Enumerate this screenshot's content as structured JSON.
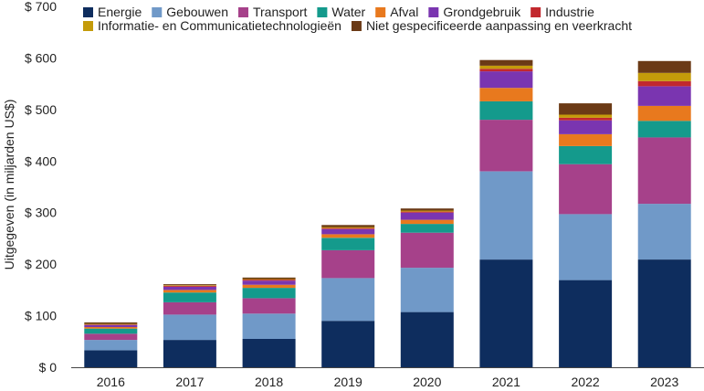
{
  "chart_data": {
    "type": "bar",
    "stacked": true,
    "title": "",
    "xlabel": "",
    "ylabel": "Uitgegeven (in miljarden US$)",
    "ylim": [
      0,
      700
    ],
    "yticks": [
      0,
      100,
      200,
      300,
      400,
      500,
      600,
      700
    ],
    "ytick_labels": [
      "$ 0",
      "$ 100",
      "$ 200",
      "$ 300",
      "$ 400",
      "$ 500",
      "$ 600",
      "$ 700"
    ],
    "grid": false,
    "legend_position": "top",
    "categories": [
      "2016",
      "2017",
      "2018",
      "2019",
      "2020",
      "2021",
      "2022",
      "2023"
    ],
    "series": [
      {
        "name": "Energie",
        "color": "#0e2d5e",
        "values": [
          33,
          53,
          55,
          90,
          107,
          209,
          169,
          209
        ]
      },
      {
        "name": "Gebouwen",
        "color": "#7099c8",
        "values": [
          20,
          49,
          49,
          83,
          86,
          171,
          128,
          108
        ]
      },
      {
        "name": "Transport",
        "color": "#a6418a",
        "values": [
          12,
          24,
          30,
          54,
          68,
          100,
          97,
          129
        ]
      },
      {
        "name": "Water",
        "color": "#149a8c",
        "values": [
          10,
          19,
          20,
          24,
          17,
          36,
          35,
          32
        ]
      },
      {
        "name": "Afval",
        "color": "#e8791e",
        "values": [
          3,
          5,
          6,
          7,
          8,
          26,
          23,
          29
        ]
      },
      {
        "name": "Grondgebruik",
        "color": "#7a35b0",
        "values": [
          4,
          6,
          8,
          10,
          14,
          32,
          27,
          38
        ]
      },
      {
        "name": "Industrie",
        "color": "#c2282e",
        "values": [
          1,
          2,
          2,
          2,
          2,
          5,
          5,
          10
        ]
      },
      {
        "name": "Informatie- en Communicatietechnologieën",
        "color": "#c49b0a",
        "values": [
          1,
          1,
          1,
          2,
          2,
          6,
          6,
          16
        ]
      },
      {
        "name": "Niet gespecificeerde aanpassing en veerkracht",
        "color": "#6b3a16",
        "values": [
          3,
          2,
          3,
          4,
          4,
          11,
          22,
          23
        ]
      }
    ]
  }
}
